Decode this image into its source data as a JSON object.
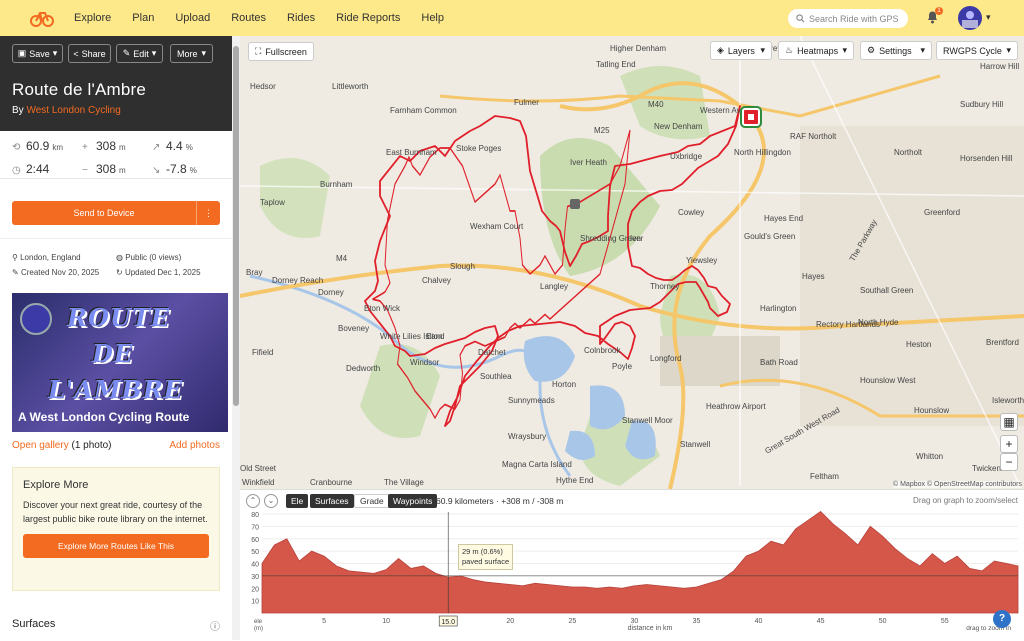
{
  "nav": {
    "items": [
      "Explore",
      "Plan",
      "Upload",
      "Routes",
      "Rides",
      "Ride Reports",
      "Help"
    ],
    "search_placeholder": "Search Ride with GPS",
    "notifications": "1"
  },
  "toolbar": {
    "save": "Save",
    "share": "Share",
    "edit": "Edit",
    "more": "More"
  },
  "route": {
    "title": "Route de l'Ambre",
    "by_prefix": "By",
    "author": "West London Cycling"
  },
  "stats": {
    "distance": "60.9",
    "distance_unit": "km",
    "duration": "2:44",
    "gain": "308",
    "gain_unit": "m",
    "loss": "308",
    "loss_unit": "m",
    "grade_up": "4.4",
    "grade_up_unit": "%",
    "grade_down": "-7.8",
    "grade_down_unit": "%"
  },
  "send": {
    "label": "Send to Device"
  },
  "meta": {
    "location": "London, England",
    "visibility": "Public (0 views)",
    "created": "Created Nov 20, 2025",
    "updated": "Updated Dec 1, 2025"
  },
  "banner": {
    "line1": "ROUTE",
    "line2": "DE",
    "line3": "L'AMBRE",
    "subtitle": "A West London Cycling Route"
  },
  "gallery": {
    "open": "Open gallery",
    "count": "(1 photo)",
    "add": "Add photos"
  },
  "explore": {
    "title": "Explore More",
    "text": "Discover your next great ride, courtesy of the largest public bike route library on the internet.",
    "button": "Explore More Routes Like This"
  },
  "surfaces": {
    "title": "Surfaces"
  },
  "map": {
    "fullscreen": "Fullscreen",
    "layers": "Layers",
    "heatmaps": "Heatmaps",
    "settings": "Settings",
    "style": "RWGPS Cycle",
    "attribution": "© Mapbox © OpenStreetMap contributors",
    "labels": [
      "Hedsor",
      "Littleworth",
      "Higher Denham",
      "Harefield",
      "Harrow Hill",
      "Farnham Common",
      "Tatling End",
      "Fulmer",
      "M25",
      "M40",
      "Western Av",
      "Sudbury Hill",
      "Stoke Poges",
      "East Burnham",
      "New Denham",
      "RAF Northolt",
      "Horsenden Hill",
      "Burnham",
      "Iver Heath",
      "Uxbridge",
      "North Hillingdon",
      "Northolt",
      "Taplow",
      "Wexham Court",
      "Cowley",
      "Hayes End",
      "Greenford",
      "Shredding Green",
      "Gould's Green",
      "Iver",
      "Bray",
      "Dorney Reach",
      "Slough",
      "Chalvey",
      "Langley",
      "M4",
      "Yiewsley",
      "The Parkway",
      "Hayes",
      "Southall Green",
      "Dorney",
      "Eton Wick",
      "Boveney",
      "Thorney",
      "Harlington",
      "Rectory Hartlands",
      "North Hyde",
      "Fifield",
      "White Lilies Island",
      "Eton",
      "Windsor",
      "Datchet",
      "Colnbrook",
      "Longford",
      "Bath Road",
      "Heston",
      "Brentford",
      "Dedworth",
      "Southlea",
      "Poyle",
      "Horton",
      "Heathrow Airport",
      "Hounslow West",
      "Isleworth",
      "Sunnymeads",
      "Stanwell Moor",
      "Great South West Road",
      "Hounslow",
      "Wraysbury",
      "Stanwell",
      "Whitton",
      "Twickenham",
      "Old Street",
      "Cranbourne",
      "The Village",
      "Magna Carta Island",
      "Hythe End",
      "Feltham",
      "Winkfield"
    ]
  },
  "elevation": {
    "tabs": [
      "Ele",
      "Surfaces",
      "Grade",
      "Waypoints"
    ],
    "summary": "60.9 kilometers · +308 m / -308 m",
    "hint": "Drag on graph to zoom/select",
    "tooltip_line1": "29 m (0.6%)",
    "tooltip_line2": "paved surface",
    "cursor_label": "15.0",
    "y_label": "ele (m)",
    "x_label": "distance in km",
    "zoom_hint": "drag to zoom in"
  },
  "chart_data": {
    "type": "area",
    "x": [
      0,
      1,
      2,
      3,
      4,
      5,
      6,
      7,
      8,
      9,
      10,
      11,
      12,
      13,
      14,
      15,
      16,
      17,
      18,
      19,
      20,
      21,
      22,
      23,
      24,
      25,
      26,
      27,
      28,
      29,
      30,
      31,
      32,
      33,
      34,
      35,
      36,
      37,
      38,
      39,
      40,
      41,
      42,
      43,
      44,
      45,
      46,
      47,
      48,
      49,
      50,
      51,
      52,
      53,
      54,
      55,
      56,
      57,
      58,
      59,
      60,
      60.9
    ],
    "y": [
      40,
      55,
      60,
      42,
      50,
      46,
      38,
      34,
      33,
      32,
      35,
      44,
      36,
      38,
      32,
      29,
      30,
      27,
      25,
      24,
      23,
      22,
      24,
      23,
      22,
      21,
      21,
      20,
      21,
      20,
      22,
      23,
      22,
      21,
      20,
      21,
      24,
      27,
      34,
      46,
      50,
      58,
      55,
      68,
      75,
      82,
      72,
      64,
      55,
      70,
      62,
      52,
      44,
      38,
      48,
      40,
      46,
      36,
      34,
      42,
      40,
      38
    ],
    "xlabel": "distance in km",
    "ylabel": "ele (m)",
    "xlim": [
      0,
      60.9
    ],
    "ylim": [
      0,
      80
    ],
    "xticks": [
      5,
      10,
      15,
      20,
      25,
      30,
      35,
      40,
      45,
      50,
      55
    ],
    "yticks": [
      10,
      20,
      30,
      40,
      50,
      60,
      70,
      80
    ],
    "color": "#d4574a"
  }
}
